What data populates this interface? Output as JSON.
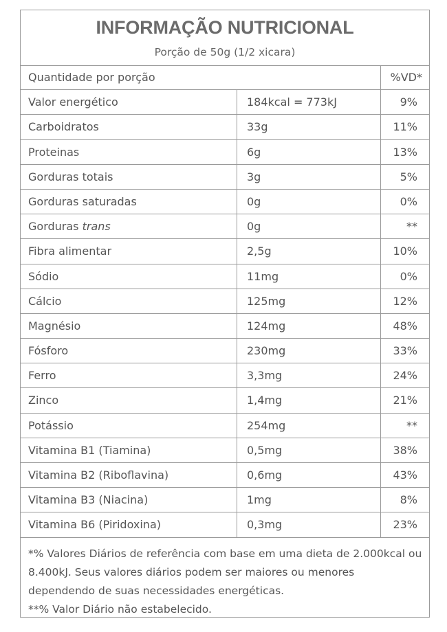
{
  "title": "INFORMAÇÃO NUTRICIONAL",
  "subtitle": "Porção de 50g (1/2 xicara)",
  "header_row": {
    "label": "Quantidade por porção",
    "vd": "%VD*"
  },
  "rows": [
    {
      "name": "Valor energético",
      "qty": "184kcal = 773kJ",
      "vd": "9%"
    },
    {
      "name": "Carboidratos",
      "qty": "33g",
      "vd": "11%"
    },
    {
      "name": "Proteinas",
      "qty": "6g",
      "vd": "13%"
    },
    {
      "name": "Gorduras totais",
      "qty": "3g",
      "vd": "5%"
    },
    {
      "name": "Gorduras saturadas",
      "qty": "0g",
      "vd": "0%"
    },
    {
      "name": "Gorduras",
      "name_italic": "trans",
      "qty": "0g",
      "vd": "**"
    },
    {
      "name": "Fibra alimentar",
      "qty": "2,5g",
      "vd": "10%"
    },
    {
      "name": "Sódio",
      "qty": "11mg",
      "vd": "0%"
    },
    {
      "name": "Cálcio",
      "qty": "125mg",
      "vd": "12%"
    },
    {
      "name": "Magnésio",
      "qty": "124mg",
      "vd": "48%"
    },
    {
      "name": "Fósforo",
      "qty": "230mg",
      "vd": "33%"
    },
    {
      "name": "Ferro",
      "qty": "3,3mg",
      "vd": "24%"
    },
    {
      "name": "Zinco",
      "qty": "1,4mg",
      "vd": "21%"
    },
    {
      "name": "Potássio",
      "qty": "254mg",
      "vd": "**"
    },
    {
      "name": "Vitamina B1 (Tiamina)",
      "qty": "0,5mg",
      "vd": "38%"
    },
    {
      "name": "Vitamina B2 (Riboflavina)",
      "qty": "0,6mg",
      "vd": "43%"
    },
    {
      "name": "Vitamina B3 (Niacina)",
      "qty": "1mg",
      "vd": "8%"
    },
    {
      "name": "Vitamina B6 (Piridoxina)",
      "qty": "0,3mg",
      "vd": "23%"
    }
  ],
  "footnote": {
    "line1": "*% Valores Diários de referência com base em uma dieta de 2.000kcal ou 8.400kJ. Seus valores diários podem ser maiores ou menores dependendo de suas necessidades energéticas.",
    "line2": "**% Valor Diário não estabelecido."
  },
  "colors": {
    "border": "#9a9a9a",
    "text": "#555555",
    "title": "#6b6b6b"
  }
}
